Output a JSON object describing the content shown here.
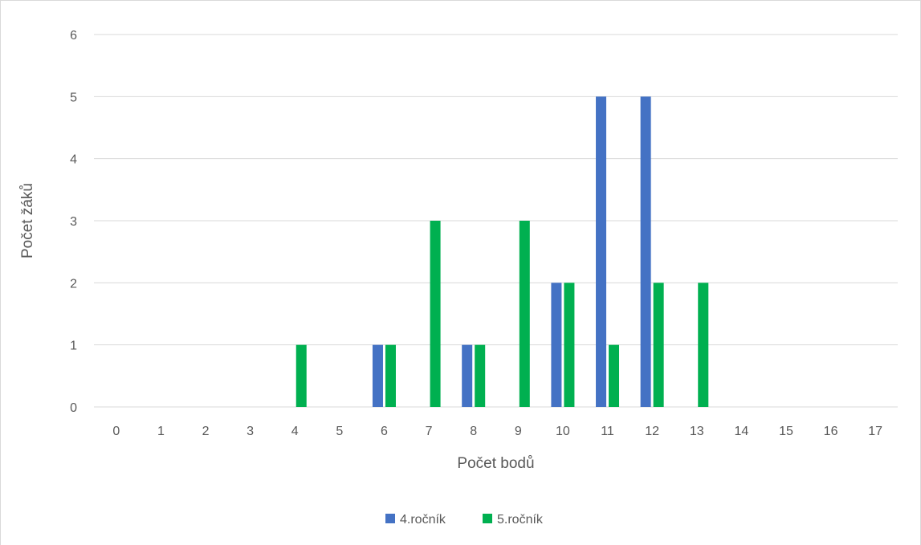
{
  "chart_data": {
    "type": "bar",
    "title": "",
    "xlabel": "Počet bodů",
    "ylabel": "Počet žáků",
    "categories": [
      "0",
      "1",
      "2",
      "3",
      "4",
      "5",
      "6",
      "7",
      "8",
      "9",
      "10",
      "11",
      "12",
      "13",
      "14",
      "15",
      "16",
      "17"
    ],
    "ylim": [
      0,
      6
    ],
    "yticks": [
      "0",
      "1",
      "2",
      "3",
      "4",
      "5",
      "6"
    ],
    "grid": true,
    "legend_position": "bottom",
    "series": [
      {
        "name": "4.ročník",
        "color": "#4472C4",
        "values": [
          0,
          0,
          0,
          0,
          0,
          0,
          1,
          0,
          1,
          0,
          2,
          5,
          5,
          0,
          0,
          0,
          0,
          0
        ]
      },
      {
        "name": "5.ročník",
        "color": "#00B050",
        "values": [
          0,
          0,
          0,
          0,
          1,
          0,
          1,
          3,
          1,
          3,
          2,
          1,
          2,
          2,
          0,
          0,
          0,
          0
        ]
      }
    ]
  }
}
